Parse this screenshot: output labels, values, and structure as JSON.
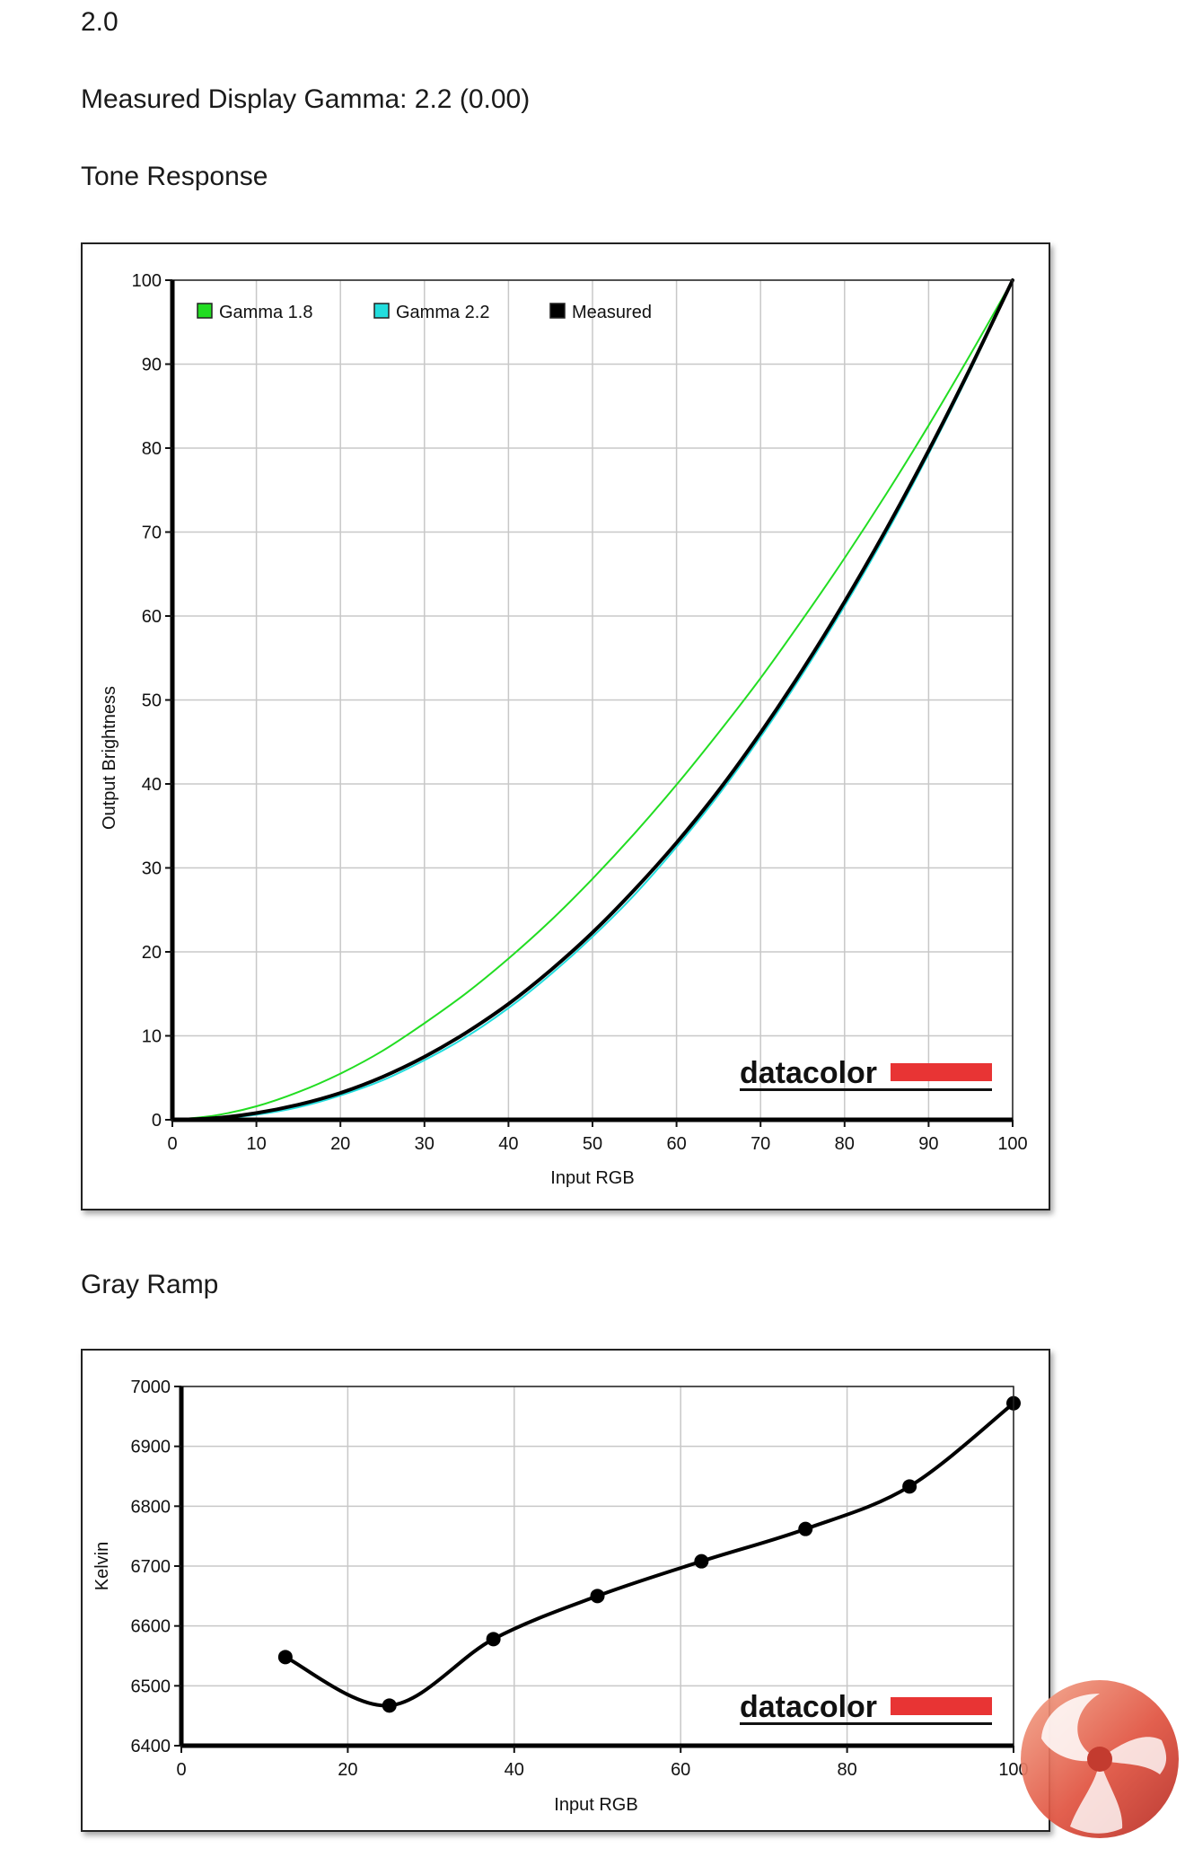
{
  "page": {
    "top_value": "2.0",
    "measured_gamma": "Measured Display Gamma: 2.2 (0.00)",
    "tone_heading": "Tone Response",
    "gray_heading": "Gray Ramp"
  },
  "chart_data": [
    {
      "type": "line",
      "title": "",
      "xlabel": "Input RGB",
      "ylabel": "Output Brightness",
      "xlim": [
        0,
        100
      ],
      "ylim": [
        0,
        100
      ],
      "x_ticks": [
        0,
        10,
        20,
        30,
        40,
        50,
        60,
        70,
        80,
        90,
        100
      ],
      "y_ticks": [
        0,
        10,
        20,
        30,
        40,
        50,
        60,
        70,
        80,
        90,
        100
      ],
      "grid": true,
      "legend": "top-left",
      "watermark": "datacolor",
      "series": [
        {
          "name": "Gamma 1.8",
          "color": "#22dd22",
          "x": [
            0,
            5,
            10,
            15,
            20,
            25,
            30,
            35,
            40,
            45,
            50,
            55,
            60,
            65,
            70,
            75,
            80,
            85,
            90,
            95,
            100
          ],
          "y": [
            0,
            0.5,
            1.6,
            3.3,
            5.5,
            8.2,
            11.5,
            15.1,
            19.2,
            23.7,
            28.7,
            34.1,
            39.9,
            46.1,
            52.6,
            59.6,
            66.9,
            74.6,
            82.7,
            91.2,
            100
          ]
        },
        {
          "name": "Gamma 2.2",
          "color": "#22dddd",
          "x": [
            0,
            5,
            10,
            15,
            20,
            25,
            30,
            35,
            40,
            45,
            50,
            55,
            60,
            65,
            70,
            75,
            80,
            85,
            90,
            95,
            100
          ],
          "y": [
            0,
            0.1,
            0.6,
            1.5,
            2.9,
            4.7,
            7.1,
            9.9,
            13.3,
            17.3,
            21.8,
            26.8,
            32.5,
            38.7,
            45.6,
            53.1,
            61.2,
            69.9,
            79.3,
            89.3,
            100
          ]
        },
        {
          "name": "Measured",
          "color": "#000000",
          "x": [
            0,
            5,
            10,
            15,
            20,
            25,
            30,
            35,
            40,
            45,
            50,
            55,
            60,
            65,
            70,
            75,
            80,
            85,
            90,
            95,
            100
          ],
          "y": [
            0,
            0.2,
            0.8,
            1.8,
            3.2,
            5.1,
            7.5,
            10.4,
            13.8,
            17.8,
            22.3,
            27.4,
            33.0,
            39.2,
            46.1,
            53.6,
            61.7,
            70.4,
            79.7,
            89.6,
            100
          ]
        }
      ]
    },
    {
      "type": "line",
      "title": "",
      "xlabel": "Input RGB",
      "ylabel": "Kelvin",
      "xlim": [
        0,
        100
      ],
      "ylim": [
        6400,
        7000
      ],
      "x_ticks": [
        0,
        20,
        40,
        60,
        80,
        100
      ],
      "y_ticks": [
        6400,
        6500,
        6600,
        6700,
        6800,
        6900,
        7000
      ],
      "grid": true,
      "watermark": "datacolor",
      "series": [
        {
          "color": "#000000",
          "x": [
            12.5,
            25,
            37.5,
            50,
            62.5,
            75,
            87.5,
            100
          ],
          "y": [
            6548,
            6467,
            6578,
            6650,
            6708,
            6762,
            6833,
            6972
          ]
        }
      ]
    }
  ]
}
